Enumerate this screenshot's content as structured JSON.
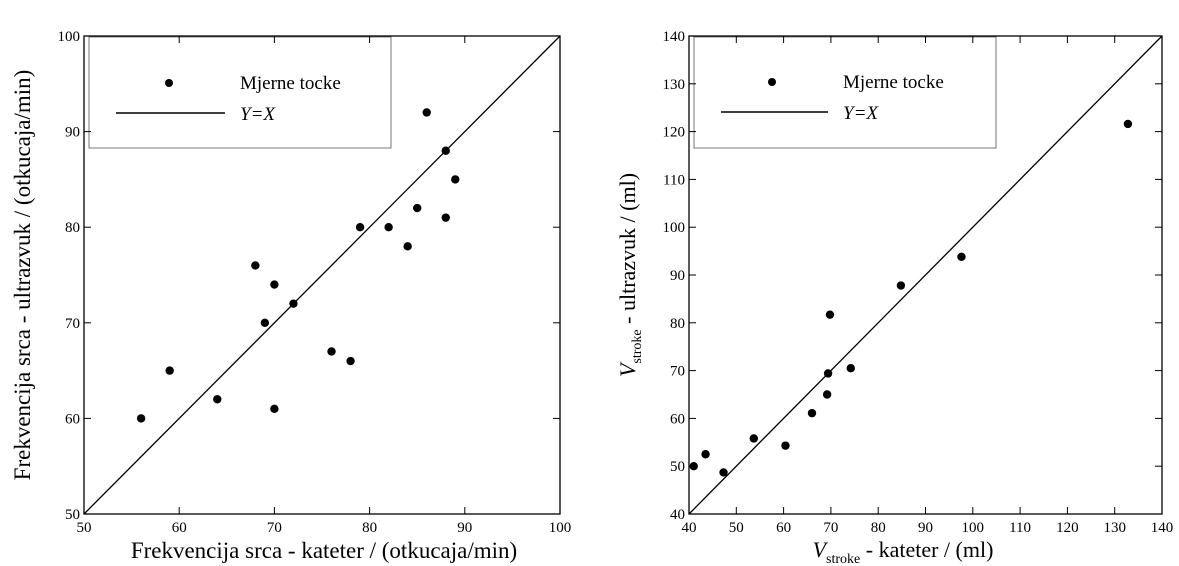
{
  "chart_data": [
    {
      "type": "scatter",
      "xlabel": "Frekvencija srca - kateter / (otkucaja/min)",
      "ylabel": "Frekvencija srca - ultrazvuk / (otkucaja/min)",
      "xlim": [
        50,
        100
      ],
      "ylim": [
        50,
        100
      ],
      "xticks": [
        "50",
        "60",
        "70",
        "80",
        "90",
        "100"
      ],
      "yticks": [
        "50",
        "60",
        "70",
        "80",
        "90",
        "100"
      ],
      "grid": false,
      "legend_position": "top-left",
      "legend": {
        "points": "Mjerne tocke",
        "line": "Y=X"
      },
      "series": [
        {
          "name": "Mjerne tocke",
          "x": [
            56,
            59,
            64,
            68,
            69,
            70,
            70,
            72,
            76,
            78,
            79,
            82,
            84,
            85,
            86,
            88,
            88,
            89
          ],
          "y": [
            60,
            65,
            62,
            76,
            70,
            74,
            61,
            72,
            67,
            66,
            80,
            80,
            78,
            82,
            92,
            88,
            81,
            85
          ]
        },
        {
          "name": "Y=X",
          "x": [
            50,
            100
          ],
          "y": [
            50,
            100
          ]
        }
      ]
    },
    {
      "type": "scatter",
      "xlabel": {
        "main": "V",
        "sub": "stroke",
        "rest": " - kateter / (ml)"
      },
      "ylabel": {
        "main": "V",
        "sub": "stroke",
        "rest": " - ultrazvuk / (ml)"
      },
      "xlim": [
        40,
        140
      ],
      "ylim": [
        40,
        140
      ],
      "xticks": [
        "40",
        "50",
        "60",
        "70",
        "80",
        "90",
        "100",
        "110",
        "120",
        "130",
        "140"
      ],
      "yticks": [
        "40",
        "50",
        "60",
        "70",
        "80",
        "90",
        "100",
        "110",
        "120",
        "130",
        "140"
      ],
      "grid": false,
      "legend_position": "top-left",
      "legend": {
        "points": "Mjerne tocke",
        "line": "Y=X"
      },
      "series": [
        {
          "name": "Mjerne tocke",
          "x": [
            41,
            43.5,
            47.3,
            53.7,
            60.4,
            66,
            69.2,
            69.4,
            69.8,
            74.2,
            84.8,
            97.6,
            132.8
          ],
          "y": [
            50,
            52.5,
            48.7,
            55.8,
            54.3,
            61.1,
            65,
            69.4,
            81.7,
            70.5,
            87.8,
            93.8,
            121.6
          ]
        },
        {
          "name": "Y=X",
          "x": [
            40,
            140
          ],
          "y": [
            40,
            140
          ]
        }
      ]
    }
  ]
}
